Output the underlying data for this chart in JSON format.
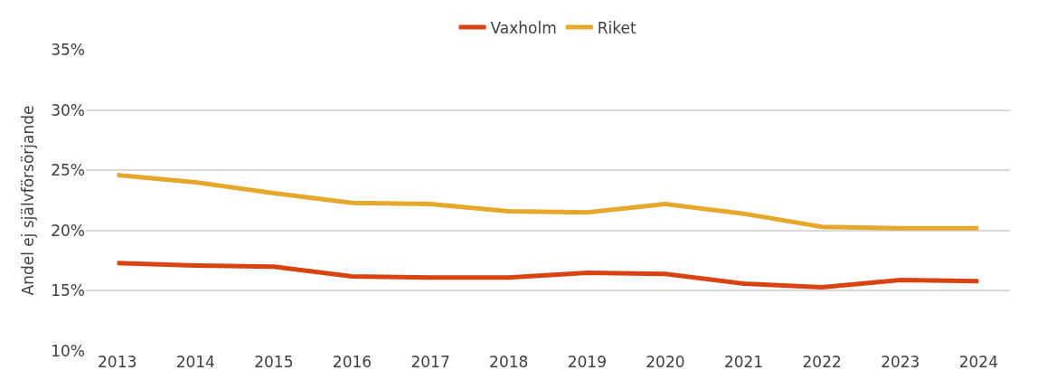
{
  "chart_data": {
    "type": "line",
    "ylabel": "Andel ej självförsörjande",
    "categories": [
      "2013",
      "2014",
      "2015",
      "2016",
      "2017",
      "2018",
      "2019",
      "2020",
      "2021",
      "2022",
      "2023",
      "2024"
    ],
    "series": [
      {
        "name": "Vaxholm",
        "color": "#d9430f",
        "values": [
          17.3,
          17.1,
          17.0,
          16.2,
          16.1,
          16.1,
          16.5,
          16.4,
          15.6,
          15.3,
          15.9,
          15.8
        ]
      },
      {
        "name": "Riket",
        "color": "#e5a82a",
        "values": [
          24.6,
          24.0,
          23.1,
          22.3,
          22.2,
          21.6,
          21.5,
          22.2,
          21.4,
          20.3,
          20.2,
          20.2
        ]
      }
    ],
    "ylim": [
      10,
      35
    ],
    "yticks": [
      {
        "value": 10,
        "label": "10%"
      },
      {
        "value": 15,
        "label": "15%"
      },
      {
        "value": 20,
        "label": "20%"
      },
      {
        "value": 25,
        "label": "25%"
      },
      {
        "value": 30,
        "label": "30%"
      },
      {
        "value": 35,
        "label": "35%"
      }
    ],
    "grid": "y",
    "legend": "top",
    "marker": "none",
    "line_style": "solid"
  }
}
